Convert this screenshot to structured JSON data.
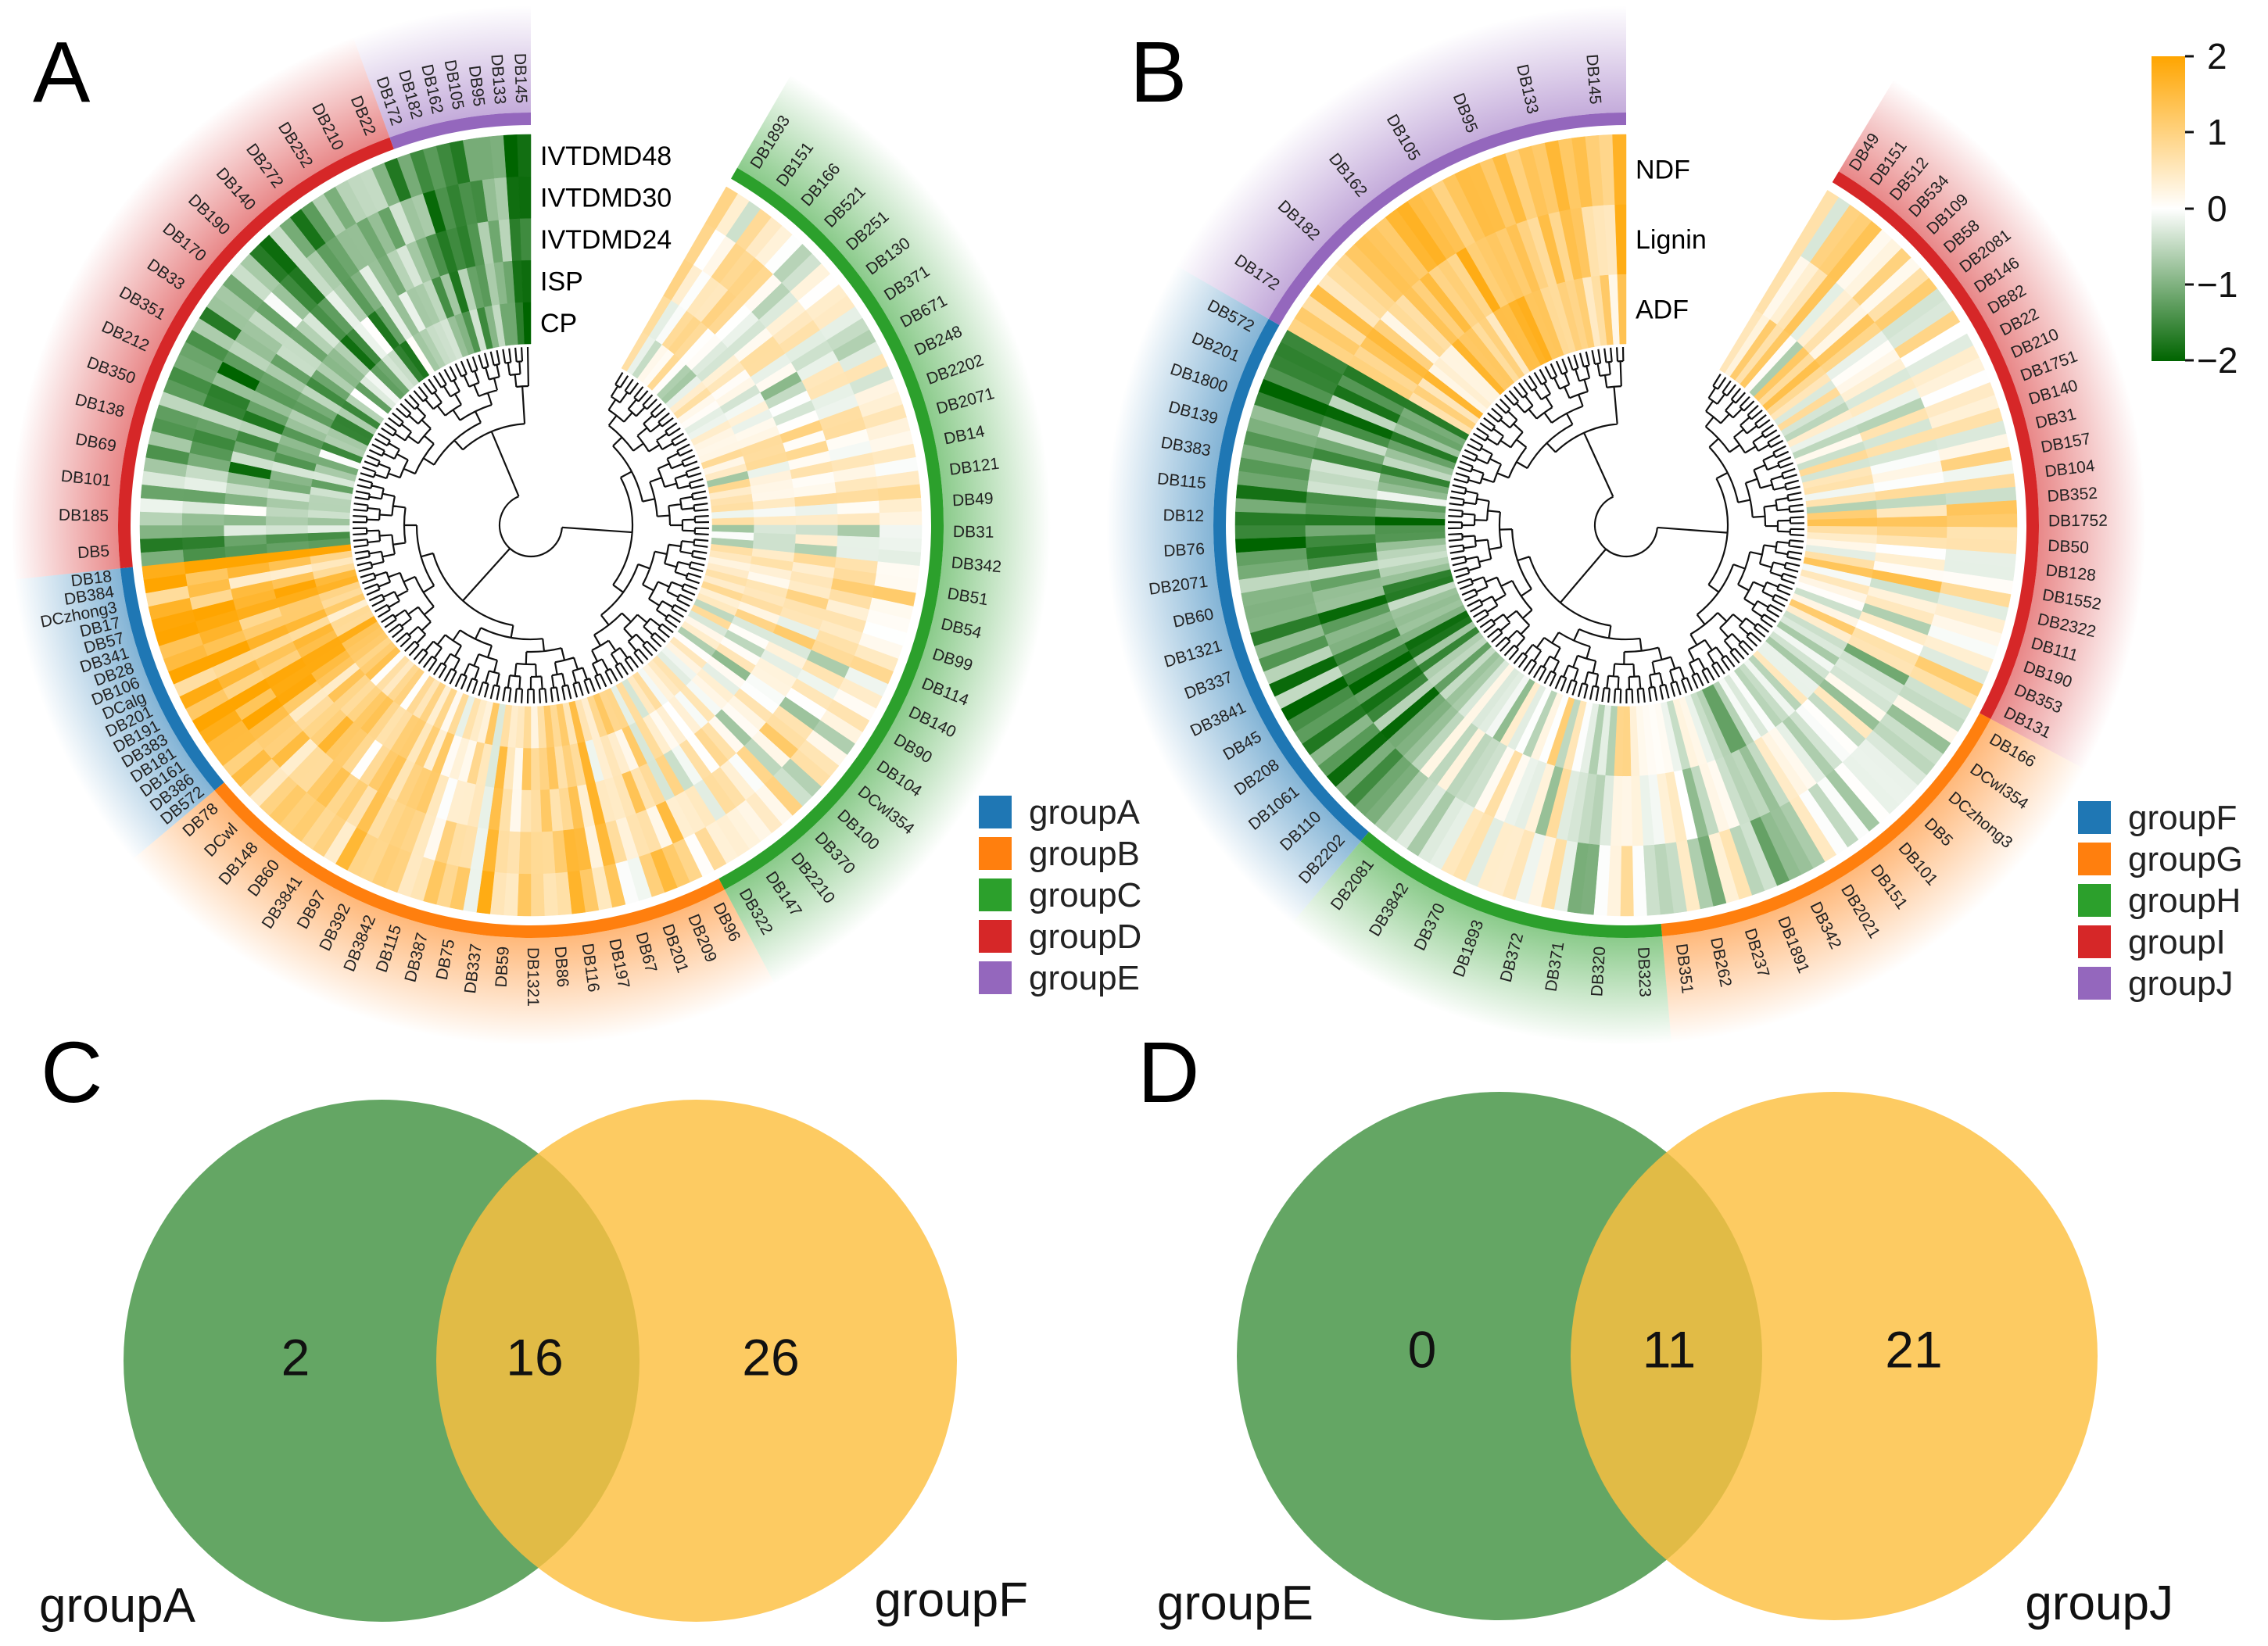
{
  "panels": {
    "a": "A",
    "b": "B",
    "c": "C",
    "d": "D"
  },
  "colorbar": {
    "range": [
      -2,
      2
    ],
    "colors": {
      "low": "#006400",
      "mid": "#ffffff",
      "high": "#ffa500"
    },
    "tick_labels": [
      "2",
      "1",
      "0",
      "−1",
      "−2"
    ]
  },
  "chart_data": [
    {
      "type": "heatmap",
      "panel": "A",
      "layout": "circular with dendrogram",
      "rows": [
        "IVTDMD48",
        "IVTDMD30",
        "IVTDMD24",
        "ISP",
        "CP"
      ],
      "groups": [
        {
          "name": "groupA",
          "color": "#1f77b4",
          "labels": [
            "DB572",
            "DB386",
            "DB161",
            "DB181",
            "DB383",
            "DB191",
            "DB201",
            "DCalg",
            "DB106",
            "DB28",
            "DB341",
            "DB57",
            "DB17",
            "DCzhong3",
            "DB384",
            "DB18"
          ]
        },
        {
          "name": "groupB",
          "color": "#ff7f0e",
          "labels": [
            "DB96",
            "DB209",
            "DB201",
            "DB67",
            "DB197",
            "DB116",
            "DB86",
            "DB1321",
            "DB59",
            "DB337",
            "DB75",
            "DB387",
            "DB115",
            "DB3842",
            "DB392",
            "DB97",
            "DB3841",
            "DB60",
            "DB148",
            "DCwl",
            "DB78"
          ]
        },
        {
          "name": "groupC",
          "color": "#2ca02c",
          "labels": [
            "DB1893",
            "DB151",
            "DB166",
            "DB521",
            "DB251",
            "DB130",
            "DB371",
            "DB671",
            "DB248",
            "DB2202",
            "DB2071",
            "DB14",
            "DB121",
            "DB49",
            "DB31",
            "DB342",
            "DB51",
            "DB54",
            "DB99",
            "DB114",
            "DB140",
            "DB90",
            "DB104",
            "DCwl354",
            "DB100",
            "DB370",
            "DB2210",
            "DB147",
            "DB322"
          ]
        },
        {
          "name": "groupD",
          "color": "#d62728",
          "labels": [
            "DB5",
            "DB185",
            "DB101",
            "DB69",
            "DB138",
            "DB350",
            "DB212",
            "DB351",
            "DB33",
            "DB170",
            "DB190",
            "DB140",
            "DB272",
            "DB252",
            "DB210",
            "DB22"
          ]
        },
        {
          "name": "groupE",
          "color": "#9467bd",
          "labels": [
            "DB172",
            "DB182",
            "DB162",
            "DB105",
            "DB95",
            "DB133",
            "DB145"
          ]
        }
      ]
    },
    {
      "type": "heatmap",
      "panel": "B",
      "layout": "circular with dendrogram",
      "rows": [
        "NDF",
        "Lignin",
        "ADF"
      ],
      "groups": [
        {
          "name": "groupF",
          "color": "#1f77b4",
          "labels": [
            "DB2202",
            "DB110",
            "DB1061",
            "DB208",
            "DB45",
            "DB3841",
            "DB337",
            "DB1321",
            "DB60",
            "DB2071",
            "DB76",
            "DB12",
            "DB115",
            "DB383",
            "DB139",
            "DB1800",
            "DB201",
            "DB572"
          ]
        },
        {
          "name": "groupG",
          "color": "#ff7f0e",
          "labels": [
            "DB166",
            "DCwl354",
            "DCzhong3",
            "DB5",
            "DB101",
            "DB151",
            "DB2021",
            "DB342",
            "DB1891",
            "DB237",
            "DB262",
            "DB351"
          ]
        },
        {
          "name": "groupH",
          "color": "#2ca02c",
          "labels": [
            "DB323",
            "DB320",
            "DB371",
            "DB372",
            "DB1893",
            "DB370",
            "DB3842",
            "DB2081"
          ]
        },
        {
          "name": "groupI",
          "color": "#d62728",
          "labels": [
            "DB49",
            "DB151",
            "DB512",
            "DB534",
            "DB109",
            "DB58",
            "DB2081",
            "DB146",
            "DB82",
            "DB22",
            "DB210",
            "DB1751",
            "DB140",
            "DB31",
            "DB157",
            "DB104",
            "DB352",
            "DB1752",
            "DB50",
            "DB128",
            "DB1552",
            "DB2322",
            "DB111",
            "DB190",
            "DB353",
            "DB131"
          ]
        },
        {
          "name": "groupJ",
          "color": "#9467bd",
          "labels": [
            "DB172",
            "DB182",
            "DB162",
            "DB105",
            "DB95",
            "DB133",
            "DB145"
          ]
        }
      ]
    },
    {
      "type": "venn",
      "panel": "C",
      "sets": [
        {
          "name": "groupA",
          "color": "#4e9a4e"
        },
        {
          "name": "groupF",
          "color": "#fcbf40"
        }
      ],
      "values": {
        "only_first": 2,
        "both": 16,
        "only_second": 26
      }
    },
    {
      "type": "venn",
      "panel": "D",
      "sets": [
        {
          "name": "groupE",
          "color": "#4e9a4e"
        },
        {
          "name": "groupJ",
          "color": "#fcbf40"
        }
      ],
      "values": {
        "only_first": 0,
        "both": 11,
        "only_second": 21
      }
    }
  ]
}
